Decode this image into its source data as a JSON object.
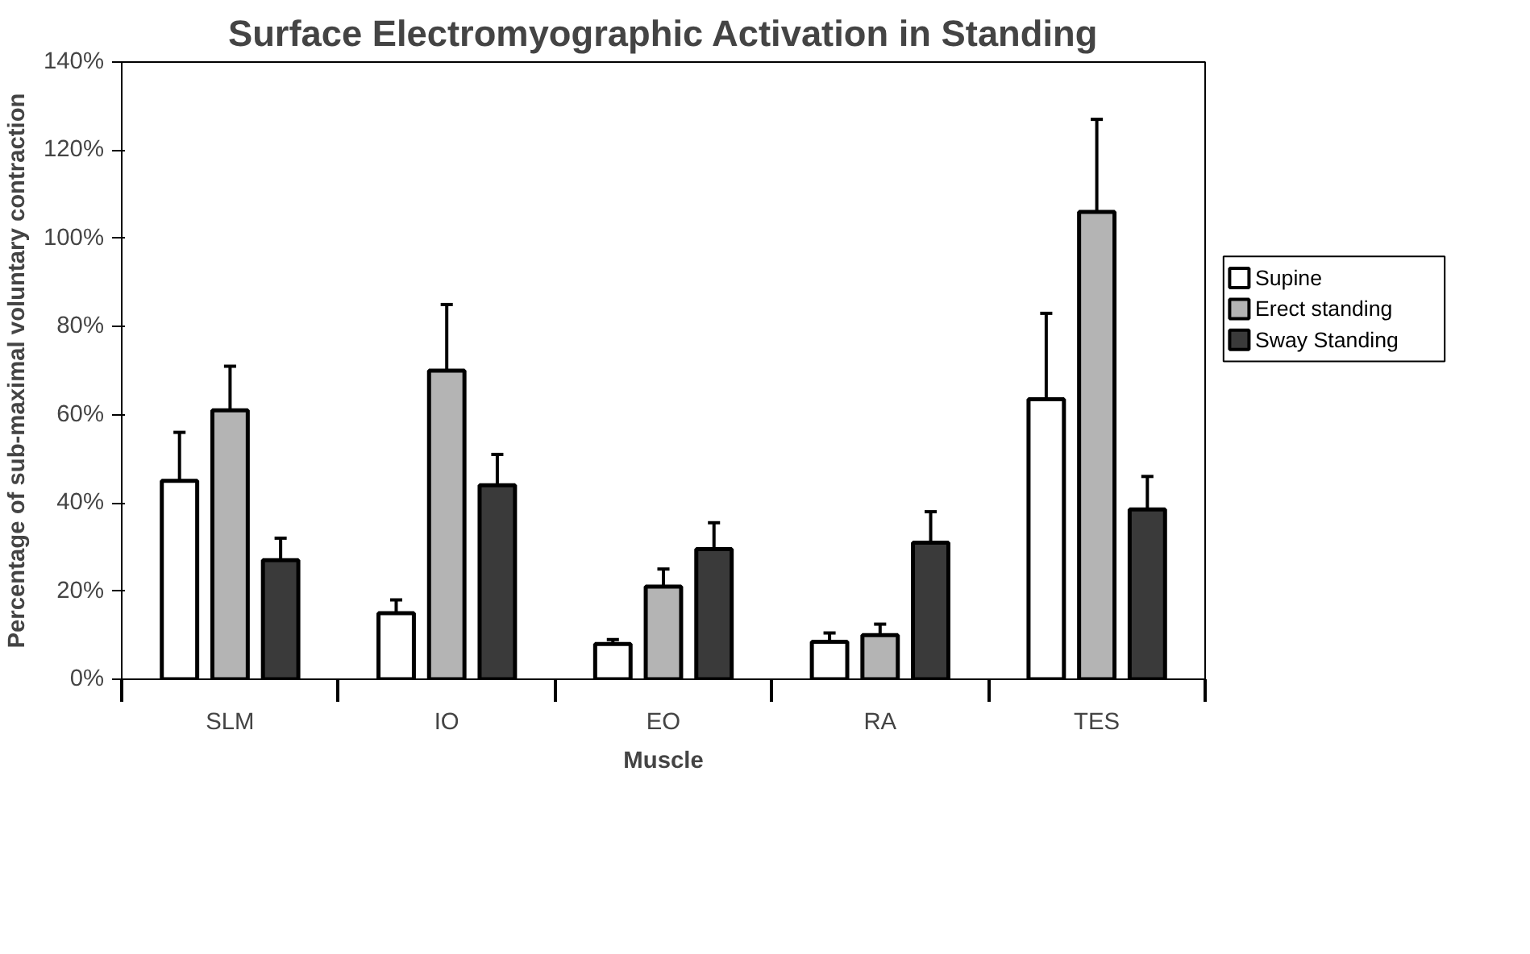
{
  "chart_data": {
    "type": "bar",
    "title": "Surface Electromyographic Activation in Standing",
    "xlabel": "Muscle",
    "ylabel": "Percentage of sub-maximal voluntary contraction",
    "categories": [
      "SLM",
      "IO",
      "EO",
      "RA",
      "TES"
    ],
    "series": [
      {
        "name": "Supine",
        "color": "#ffffff",
        "values": [
          45,
          15,
          8,
          8.5,
          63.5
        ],
        "errors": [
          [
            45,
            56
          ],
          [
            15,
            18
          ],
          [
            8,
            9
          ],
          [
            8.5,
            10.5
          ],
          [
            63.5,
            83
          ]
        ]
      },
      {
        "name": "Erect standing",
        "color": "#b4b4b4",
        "values": [
          61,
          70,
          21,
          10,
          106
        ],
        "errors": [
          [
            61,
            71
          ],
          [
            70,
            85
          ],
          [
            21,
            25
          ],
          [
            10,
            12.5
          ],
          [
            106,
            127
          ]
        ]
      },
      {
        "name": "Sway Standing",
        "color": "#3a3a3a",
        "values": [
          27,
          44,
          29.5,
          31,
          38.5
        ],
        "errors": [
          [
            27,
            32
          ],
          [
            44,
            51
          ],
          [
            29.5,
            35.5
          ],
          [
            31,
            38
          ],
          [
            38.5,
            46
          ]
        ]
      }
    ],
    "ylim": [
      0,
      140
    ],
    "yticks": [
      {
        "value": 0,
        "label": "0%"
      },
      {
        "value": 20,
        "label": "20%"
      },
      {
        "value": 40,
        "label": "40%"
      },
      {
        "value": 60,
        "label": "60%"
      },
      {
        "value": 80,
        "label": "80%"
      },
      {
        "value": 100,
        "label": "100%"
      },
      {
        "value": 120,
        "label": "120%"
      },
      {
        "value": 140,
        "label": "140%"
      }
    ],
    "legend": "right",
    "grid": false
  }
}
